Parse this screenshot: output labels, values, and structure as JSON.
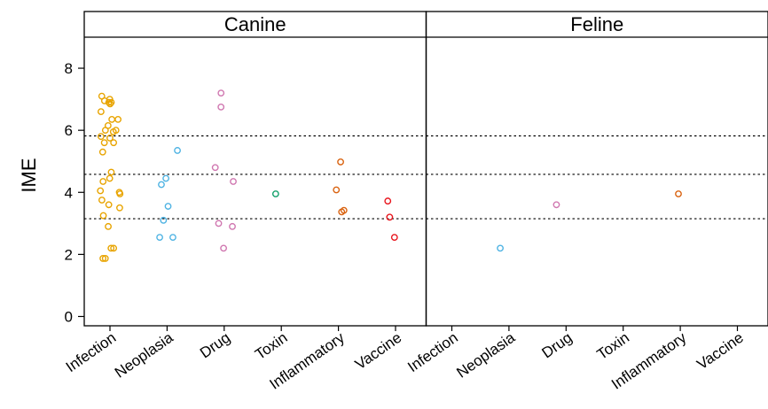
{
  "chart_data": {
    "type": "scatter",
    "ylabel": "IME",
    "xlabel": "",
    "ylim": [
      -0.3,
      9.0
    ],
    "yticks": [
      0,
      2,
      4,
      6,
      8
    ],
    "ref_lines": [
      3.15,
      4.58,
      5.82
    ],
    "categories": [
      "Infection",
      "Neoplasia",
      "Drug",
      "Toxin",
      "Inflammatory",
      "Vaccine"
    ],
    "colors": {
      "Infection": "#E8A400",
      "Neoplasia": "#4FB3E3",
      "Drug": "#D077B0",
      "Toxin": "#12A06A",
      "Inflammatory": "#D9620F",
      "Vaccine": "#E8141C"
    },
    "panels": [
      {
        "name": "Canine",
        "points": {
          "Infection": [
            7.0,
            6.9,
            7.1,
            6.95,
            6.9,
            6.85,
            6.6,
            6.35,
            6.35,
            6.15,
            6.0,
            6.0,
            5.95,
            5.8,
            5.75,
            5.6,
            5.6,
            5.3,
            4.65,
            4.45,
            4.35,
            4.05,
            4.0,
            3.95,
            3.75,
            3.6,
            3.5,
            3.25,
            2.9,
            2.2,
            2.2,
            1.87,
            1.87
          ],
          "Neoplasia": [
            5.35,
            4.45,
            4.25,
            3.55,
            3.1,
            2.55,
            2.55
          ],
          "Drug": [
            7.2,
            6.75,
            4.8,
            4.35,
            3.0,
            2.9,
            2.2
          ],
          "Toxin": [
            3.95
          ],
          "Inflammatory": [
            4.98,
            4.08,
            3.42,
            3.37
          ],
          "Vaccine": [
            3.72,
            3.2,
            2.55
          ]
        }
      },
      {
        "name": "Feline",
        "points": {
          "Infection": [],
          "Neoplasia": [
            2.2
          ],
          "Drug": [
            3.6
          ],
          "Toxin": [],
          "Inflammatory": [
            3.95
          ],
          "Vaccine": []
        }
      }
    ]
  }
}
